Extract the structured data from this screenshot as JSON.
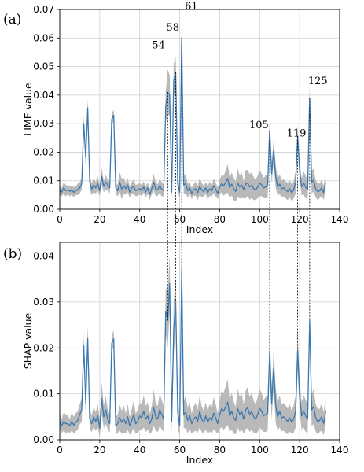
{
  "chart_data": [
    {
      "type": "line",
      "panel_label": "(a)",
      "xlabel": "Index",
      "ylabel": "LIME value",
      "xlim": [
        0,
        140
      ],
      "ylim": [
        0,
        0.07
      ],
      "xticks": [
        0,
        20,
        40,
        60,
        80,
        100,
        120,
        140
      ],
      "yticks": [
        0.0,
        0.01,
        0.02,
        0.03,
        0.04,
        0.05,
        0.06,
        0.07
      ],
      "ytick_labels": [
        "0.00",
        "0.01",
        "0.02",
        "0.03",
        "0.04",
        "0.05",
        "0.06",
        "0.07"
      ],
      "grid": true,
      "band": "uncertainty range (shaded gray)",
      "annotations": [
        {
          "text": "54",
          "x": 54,
          "y": 0.052
        },
        {
          "text": "58",
          "x": 58,
          "y": 0.056
        },
        {
          "text": "61",
          "x": 61,
          "y": 0.065
        },
        {
          "text": "105",
          "x": 105,
          "y": 0.029
        },
        {
          "text": "119",
          "x": 119,
          "y": 0.026
        },
        {
          "text": "125",
          "x": 125,
          "y": 0.04
        }
      ],
      "series": [
        {
          "x": [
            0,
            1,
            2,
            3,
            4,
            5,
            6,
            7,
            8,
            9,
            10,
            11,
            12,
            13,
            14,
            15,
            16,
            17,
            18,
            19,
            20,
            21,
            22,
            23,
            24,
            25,
            26,
            27,
            28,
            29,
            30,
            31,
            32,
            33,
            34,
            35,
            36,
            37,
            38,
            39,
            40,
            41,
            42,
            43,
            44,
            45,
            46,
            47,
            48,
            49,
            50,
            51,
            52,
            53,
            54,
            55,
            56,
            57,
            58,
            59,
            60,
            61,
            62,
            63,
            64,
            65,
            66,
            67,
            68,
            69,
            70,
            71,
            72,
            73,
            74,
            75,
            76,
            77,
            78,
            79,
            80,
            81,
            82,
            83,
            84,
            85,
            86,
            87,
            88,
            89,
            90,
            91,
            92,
            93,
            94,
            95,
            96,
            97,
            98,
            99,
            100,
            101,
            102,
            103,
            104,
            105,
            106,
            107,
            108,
            109,
            110,
            111,
            112,
            113,
            114,
            115,
            116,
            117,
            118,
            119,
            120,
            121,
            122,
            123,
            124,
            125,
            126,
            127,
            128,
            129,
            130,
            131,
            132,
            133
          ],
          "values": [
            0.0065,
            0.006,
            0.0075,
            0.0065,
            0.0068,
            0.0063,
            0.0066,
            0.006,
            0.0065,
            0.007,
            0.0075,
            0.009,
            0.03,
            0.018,
            0.0355,
            0.0095,
            0.007,
            0.0085,
            0.0075,
            0.009,
            0.0065,
            0.0115,
            0.008,
            0.0095,
            0.0085,
            0.0075,
            0.0315,
            0.033,
            0.0075,
            0.0065,
            0.0095,
            0.007,
            0.0082,
            0.0072,
            0.0085,
            0.006,
            0.0075,
            0.008,
            0.0065,
            0.0068,
            0.0072,
            0.0065,
            0.0078,
            0.006,
            0.0075,
            0.0052,
            0.0072,
            0.0095,
            0.007,
            0.0068,
            0.0082,
            0.007,
            0.0065,
            0.036,
            0.041,
            0.04,
            0.006,
            0.045,
            0.048,
            0.009,
            0.006,
            0.06,
            0.0085,
            0.009,
            0.0065,
            0.0075,
            0.0055,
            0.0068,
            0.0072,
            0.0058,
            0.008,
            0.0068,
            0.0062,
            0.0075,
            0.0058,
            0.0072,
            0.0065,
            0.0082,
            0.007,
            0.0055,
            0.0078,
            0.009,
            0.0082,
            0.0095,
            0.0108,
            0.0075,
            0.0088,
            0.0072,
            0.0062,
            0.0092,
            0.0078,
            0.0085,
            0.0068,
            0.0088,
            0.0092,
            0.0078,
            0.0085,
            0.0072,
            0.0068,
            0.0078,
            0.0092,
            0.0085,
            0.0075,
            0.0078,
            0.0082,
            0.0275,
            0.0125,
            0.0205,
            0.0115,
            0.0078,
            0.0088,
            0.0072,
            0.0075,
            0.0068,
            0.0062,
            0.0072,
            0.0058,
            0.0068,
            0.0095,
            0.0255,
            0.0135,
            0.0078,
            0.0092,
            0.0078,
            0.0068,
            0.039,
            0.0095,
            0.0102,
            0.0072,
            0.0062,
            0.0065,
            0.0075,
            0.0058,
            0.0095
          ],
          "band_halfwidth": [
            0.0015,
            0.0015,
            0.002,
            0.002,
            0.0015,
            0.0018,
            0.0015,
            0.0018,
            0.0015,
            0.002,
            0.002,
            0.002,
            0.0025,
            0.003,
            0.003,
            0.0025,
            0.002,
            0.0025,
            0.002,
            0.0025,
            0.002,
            0.003,
            0.002,
            0.0025,
            0.002,
            0.002,
            0.002,
            0.002,
            0.002,
            0.002,
            0.0035,
            0.0035,
            0.003,
            0.002,
            0.0025,
            0.002,
            0.002,
            0.0025,
            0.002,
            0.002,
            0.002,
            0.002,
            0.002,
            0.002,
            0.002,
            0.002,
            0.002,
            0.003,
            0.0025,
            0.002,
            0.0025,
            0.0025,
            0.002,
            0.005,
            0.008,
            0.007,
            0.0025,
            0.006,
            0.0055,
            0.003,
            0.002,
            0.0065,
            0.003,
            0.0035,
            0.0025,
            0.002,
            0.002,
            0.002,
            0.0025,
            0.0025,
            0.003,
            0.0025,
            0.002,
            0.002,
            0.0025,
            0.0025,
            0.002,
            0.0025,
            0.0025,
            0.002,
            0.0025,
            0.003,
            0.0035,
            0.004,
            0.005,
            0.0035,
            0.004,
            0.004,
            0.0035,
            0.005,
            0.004,
            0.0045,
            0.003,
            0.005,
            0.0045,
            0.0045,
            0.0045,
            0.004,
            0.0035,
            0.004,
            0.0045,
            0.004,
            0.0035,
            0.004,
            0.004,
            0.004,
            0.0035,
            0.004,
            0.004,
            0.003,
            0.0035,
            0.003,
            0.003,
            0.003,
            0.003,
            0.003,
            0.003,
            0.003,
            0.004,
            0.004,
            0.003,
            0.003,
            0.004,
            0.004,
            0.003,
            0.004,
            0.004,
            0.004,
            0.003,
            0.003,
            0.0025,
            0.003,
            0.0025,
            0.003
          ],
          "color": "#3a78b0"
        }
      ]
    },
    {
      "type": "line",
      "panel_label": "(b)",
      "xlabel": "Index",
      "ylabel": "SHAP value",
      "xlim": [
        0,
        140
      ],
      "ylim": [
        0,
        0.043
      ],
      "xticks": [
        0,
        20,
        40,
        60,
        80,
        100,
        120,
        140
      ],
      "yticks": [
        0.0,
        0.01,
        0.02,
        0.03,
        0.04
      ],
      "ytick_labels": [
        "0.00",
        "0.01",
        "0.02",
        "0.03",
        "0.04"
      ],
      "grid": true,
      "band": "uncertainty range (shaded gray)",
      "series": [
        {
          "x": [
            0,
            1,
            2,
            3,
            4,
            5,
            6,
            7,
            8,
            9,
            10,
            11,
            12,
            13,
            14,
            15,
            16,
            17,
            18,
            19,
            20,
            21,
            22,
            23,
            24,
            25,
            26,
            27,
            28,
            29,
            30,
            31,
            32,
            33,
            34,
            35,
            36,
            37,
            38,
            39,
            40,
            41,
            42,
            43,
            44,
            45,
            46,
            47,
            48,
            49,
            50,
            51,
            52,
            53,
            54,
            55,
            56,
            57,
            58,
            59,
            60,
            61,
            62,
            63,
            64,
            65,
            66,
            67,
            68,
            69,
            70,
            71,
            72,
            73,
            74,
            75,
            76,
            77,
            78,
            79,
            80,
            81,
            82,
            83,
            84,
            85,
            86,
            87,
            88,
            89,
            90,
            91,
            92,
            93,
            94,
            95,
            96,
            97,
            98,
            99,
            100,
            101,
            102,
            103,
            104,
            105,
            106,
            107,
            108,
            109,
            110,
            111,
            112,
            113,
            114,
            115,
            116,
            117,
            118,
            119,
            120,
            121,
            122,
            123,
            124,
            125,
            126,
            127,
            128,
            129,
            130,
            131,
            132,
            133
          ],
          "values": [
            0.004,
            0.003,
            0.004,
            0.0035,
            0.0035,
            0.003,
            0.004,
            0.0032,
            0.0038,
            0.0042,
            0.0055,
            0.0065,
            0.0205,
            0.008,
            0.022,
            0.0045,
            0.0035,
            0.005,
            0.004,
            0.0052,
            0.0025,
            0.009,
            0.005,
            0.0065,
            0.0045,
            0.0035,
            0.021,
            0.022,
            0.003,
            0.0035,
            0.0048,
            0.0038,
            0.0045,
            0.0035,
            0.005,
            0.003,
            0.0042,
            0.0055,
            0.0035,
            0.004,
            0.0052,
            0.0048,
            0.0062,
            0.0045,
            0.0052,
            0.0035,
            0.0045,
            0.007,
            0.005,
            0.0045,
            0.0065,
            0.0055,
            0.0045,
            0.028,
            0.026,
            0.034,
            0.004,
            0.024,
            0.03,
            0.006,
            0.003,
            0.037,
            0.0055,
            0.006,
            0.0042,
            0.0052,
            0.0035,
            0.0045,
            0.005,
            0.004,
            0.0062,
            0.0045,
            0.0038,
            0.0052,
            0.0038,
            0.0048,
            0.0042,
            0.0058,
            0.0048,
            0.0035,
            0.0055,
            0.0068,
            0.0062,
            0.0072,
            0.0082,
            0.0052,
            0.0062,
            0.0048,
            0.0042,
            0.0068,
            0.0055,
            0.0062,
            0.0045,
            0.0065,
            0.007,
            0.0055,
            0.0062,
            0.005,
            0.0045,
            0.0055,
            0.0068,
            0.0062,
            0.0052,
            0.0055,
            0.0058,
            0.019,
            0.008,
            0.0155,
            0.0075,
            0.005,
            0.0062,
            0.0048,
            0.005,
            0.0045,
            0.004,
            0.0048,
            0.0038,
            0.0045,
            0.0062,
            0.0195,
            0.0095,
            0.0052,
            0.0062,
            0.0052,
            0.0045,
            0.026,
            0.0065,
            0.0072,
            0.0048,
            0.004,
            0.0042,
            0.005,
            0.0035,
            0.0062
          ],
          "band_halfwidth": [
            0.0018,
            0.0015,
            0.002,
            0.002,
            0.0018,
            0.0015,
            0.002,
            0.0018,
            0.002,
            0.002,
            0.0022,
            0.0025,
            0.0025,
            0.003,
            0.003,
            0.0022,
            0.0018,
            0.0022,
            0.002,
            0.0025,
            0.002,
            0.0035,
            0.0025,
            0.003,
            0.0022,
            0.002,
            0.0018,
            0.0018,
            0.002,
            0.002,
            0.0028,
            0.0025,
            0.003,
            0.0022,
            0.0028,
            0.002,
            0.0025,
            0.003,
            0.0022,
            0.0025,
            0.003,
            0.0028,
            0.0035,
            0.0028,
            0.003,
            0.0022,
            0.0028,
            0.004,
            0.003,
            0.0028,
            0.0035,
            0.0032,
            0.0028,
            0.005,
            0.006,
            0.006,
            0.0025,
            0.006,
            0.005,
            0.0035,
            0.002,
            0.005,
            0.003,
            0.0035,
            0.0028,
            0.003,
            0.0022,
            0.0028,
            0.003,
            0.0025,
            0.0035,
            0.0028,
            0.0025,
            0.003,
            0.0025,
            0.003,
            0.0028,
            0.0035,
            0.003,
            0.0022,
            0.0032,
            0.004,
            0.004,
            0.0045,
            0.005,
            0.0035,
            0.004,
            0.0035,
            0.003,
            0.0042,
            0.0038,
            0.004,
            0.0032,
            0.0042,
            0.0045,
            0.0038,
            0.004,
            0.0035,
            0.0032,
            0.0038,
            0.0042,
            0.004,
            0.0035,
            0.0038,
            0.0038,
            0.004,
            0.0035,
            0.004,
            0.0038,
            0.003,
            0.0035,
            0.003,
            0.003,
            0.003,
            0.0028,
            0.003,
            0.0025,
            0.003,
            0.0035,
            0.004,
            0.0035,
            0.003,
            0.0035,
            0.0035,
            0.003,
            0.004,
            0.0035,
            0.0038,
            0.003,
            0.0028,
            0.0025,
            0.003,
            0.0025,
            0.003
          ],
          "color": "#3a78b0"
        }
      ]
    }
  ],
  "connector_indices": [
    54,
    58,
    61,
    105,
    119,
    125
  ]
}
